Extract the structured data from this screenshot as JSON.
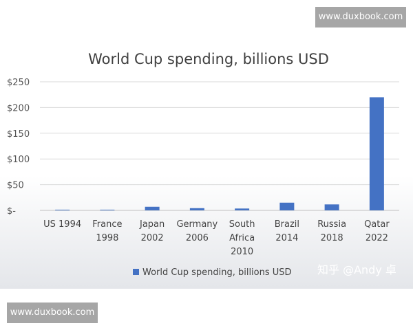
{
  "watermarks": {
    "top": "www.duxbook.com",
    "bottom": "www.duxbook.com"
  },
  "credit": "知乎 @Andy 卓",
  "colors": {
    "bar": "#4472c4",
    "grid": "#d9d9d9",
    "axis": "#bfbfbf"
  },
  "chart_data": {
    "type": "bar",
    "title": "World Cup spending, billions USD",
    "categories": [
      [
        "US 1994"
      ],
      [
        "France",
        "1998"
      ],
      [
        "Japan",
        "2002"
      ],
      [
        "Germany",
        "2006"
      ],
      [
        "South",
        "Africa",
        "2010"
      ],
      [
        "Brazil",
        "2014"
      ],
      [
        "Russia",
        "2018"
      ],
      [
        "Qatar",
        "2022"
      ]
    ],
    "series": [
      {
        "name": "World Cup spending, billions USD",
        "values": [
          0.5,
          0.3,
          7,
          4.3,
          3.6,
          15,
          11.6,
          220
        ]
      }
    ],
    "yticks": [
      "$-",
      "$50",
      "$100",
      "$150",
      "$200",
      "$250"
    ],
    "ylim": [
      0,
      250
    ],
    "grid": true,
    "legend": "bottom"
  }
}
